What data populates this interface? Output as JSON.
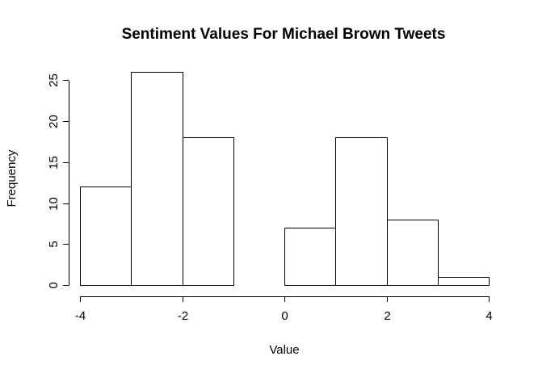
{
  "chart_data": {
    "type": "bar",
    "title": "Sentiment Values For Michael Brown Tweets",
    "xlabel": "Value",
    "ylabel": "Frequency",
    "bins": [
      {
        "start": -4,
        "end": -3,
        "value": 12
      },
      {
        "start": -3,
        "end": -2,
        "value": 26
      },
      {
        "start": -2,
        "end": -1,
        "value": 18
      },
      {
        "start": -1,
        "end": 0,
        "value": 0
      },
      {
        "start": 0,
        "end": 1,
        "value": 7
      },
      {
        "start": 1,
        "end": 2,
        "value": 18
      },
      {
        "start": 2,
        "end": 3,
        "value": 8
      },
      {
        "start": 3,
        "end": 4,
        "value": 1
      }
    ],
    "xlim": [
      -4,
      4
    ],
    "ylim": [
      0,
      26
    ],
    "xticks": [
      -4,
      -2,
      0,
      2,
      4
    ],
    "xtick_labels": [
      "-4",
      "-2",
      "0",
      "2",
      "4"
    ],
    "yticks": [
      0,
      5,
      10,
      15,
      20,
      25
    ],
    "ytick_labels": [
      "0",
      "5",
      "10",
      "15",
      "20",
      "25"
    ],
    "grid": false,
    "legend": "none"
  }
}
